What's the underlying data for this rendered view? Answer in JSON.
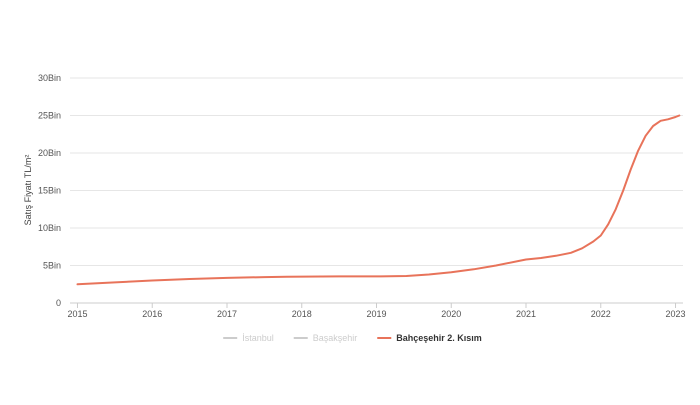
{
  "chart_data": {
    "type": "line",
    "title": "",
    "xlabel": "",
    "ylabel": "Satış Fiyatı TL/m²",
    "xlim": [
      2014.9,
      2023.1
    ],
    "ylim": [
      0,
      30000
    ],
    "x_ticks": [
      2015,
      2016,
      2017,
      2018,
      2019,
      2020,
      2021,
      2022,
      2023
    ],
    "x_tick_labels": [
      "2015",
      "2016",
      "2017",
      "2018",
      "2019",
      "2020",
      "2021",
      "2022",
      "2023"
    ],
    "y_ticks": [
      0,
      5000,
      10000,
      15000,
      20000,
      25000,
      30000
    ],
    "y_tick_labels": [
      "0",
      "5Bin",
      "10Bin",
      "15Bin",
      "20Bin",
      "25Bin",
      "30Bin"
    ],
    "grid": "horizontal",
    "legend_position": "bottom-center",
    "series": [
      {
        "name": "İstanbul",
        "color": "#cccccc",
        "visible": false,
        "x": [],
        "y": []
      },
      {
        "name": "Başakşehir",
        "color": "#cccccc",
        "visible": false,
        "x": [],
        "y": []
      },
      {
        "name": "Bahçeşehir 2. Kısım",
        "color": "#e8735a",
        "visible": true,
        "x": [
          2015.0,
          2015.5,
          2016.0,
          2016.5,
          2017.0,
          2017.5,
          2017.8,
          2018.5,
          2019.0,
          2019.4,
          2019.7,
          2020.0,
          2020.3,
          2020.6,
          2020.9,
          2021.0,
          2021.2,
          2021.4,
          2021.6,
          2021.75,
          2021.9,
          2022.0,
          2022.1,
          2022.2,
          2022.3,
          2022.4,
          2022.5,
          2022.6,
          2022.7,
          2022.8,
          2022.9,
          2023.0,
          2023.05
        ],
        "y": [
          2500,
          2750,
          3000,
          3200,
          3350,
          3450,
          3500,
          3550,
          3550,
          3600,
          3800,
          4100,
          4500,
          5000,
          5600,
          5800,
          6000,
          6300,
          6700,
          7300,
          8200,
          9000,
          10500,
          12500,
          15000,
          17800,
          20300,
          22300,
          23600,
          24300,
          24500,
          24800,
          25000
        ]
      }
    ]
  }
}
